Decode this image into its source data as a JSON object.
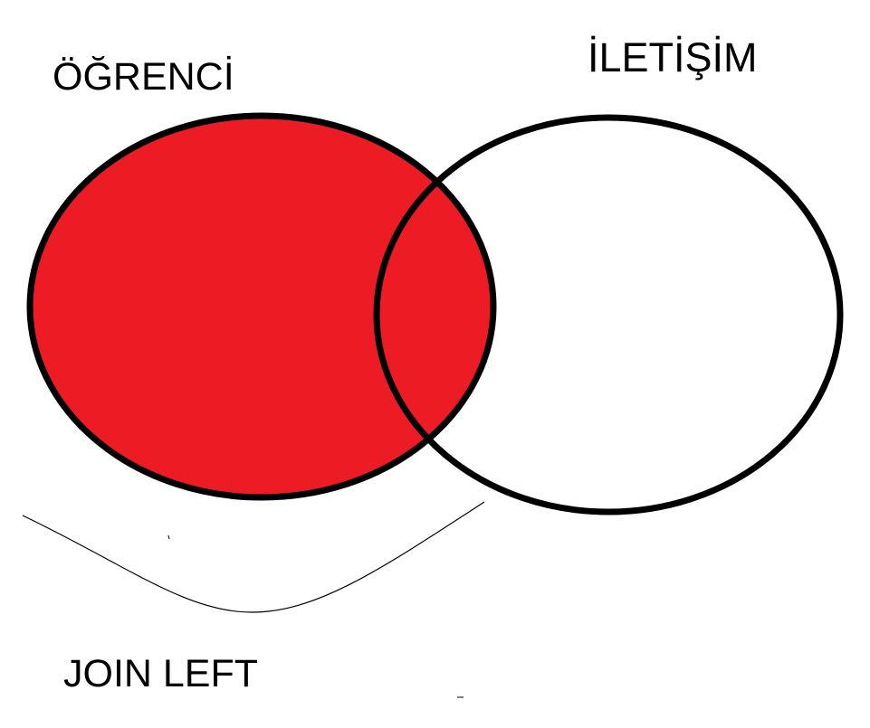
{
  "diagram": {
    "left_set_label": "ÖĞRENCİ",
    "right_set_label": "İLETİŞİM",
    "caption": "JOIN LEFT",
    "highlight_color": "#ED1C24",
    "stroke_color": "#000000",
    "background_color": "#FFFFFF"
  }
}
